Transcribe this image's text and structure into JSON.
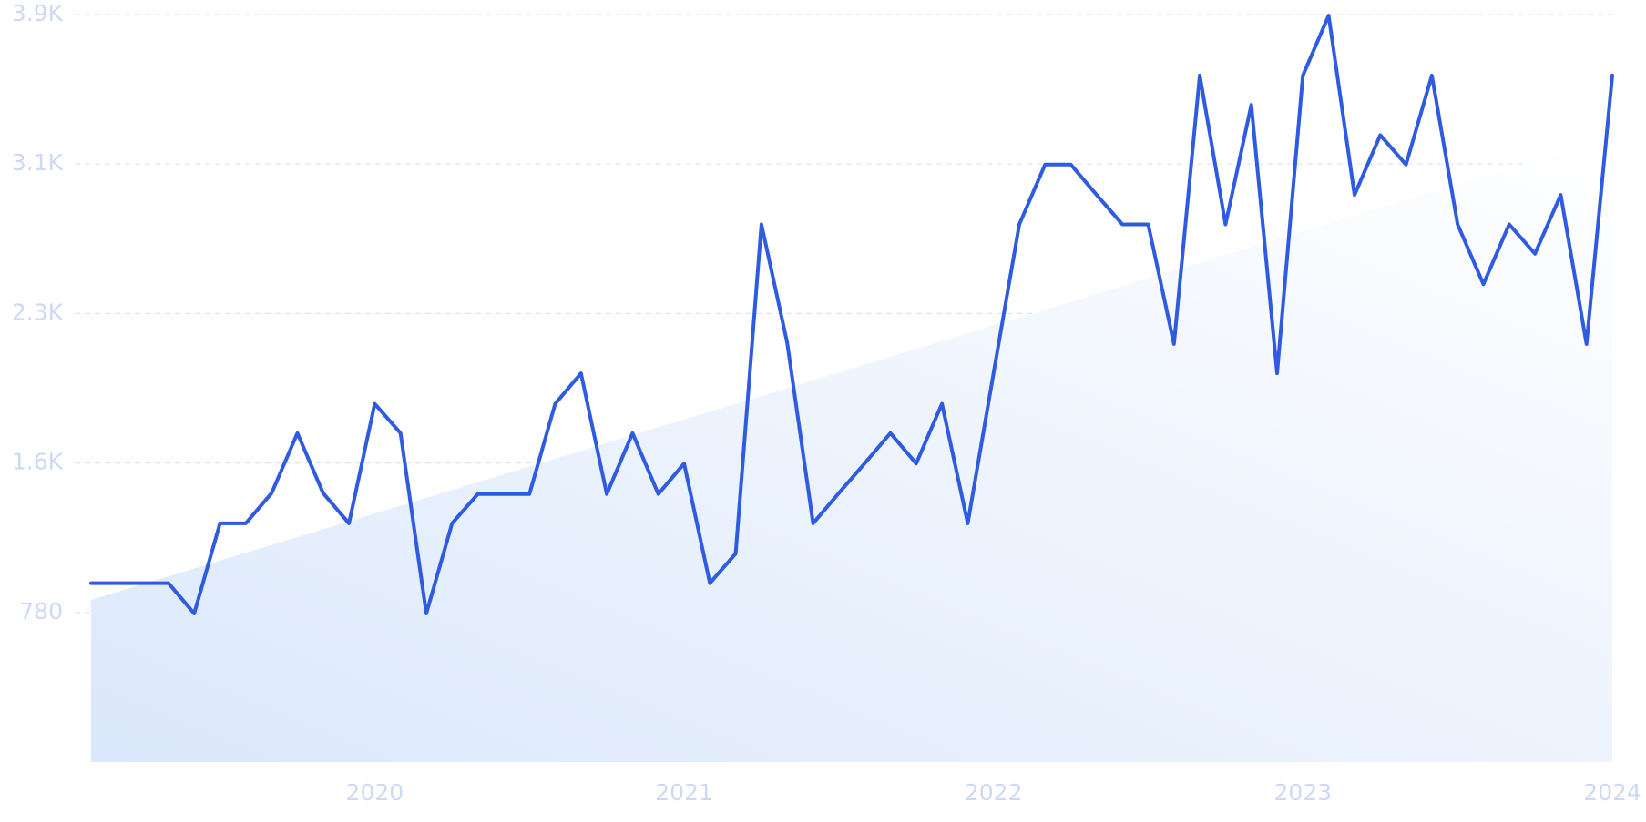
{
  "chart_data": {
    "type": "line",
    "color": "#2f5be0",
    "x": [
      2019.0833,
      2019.1667,
      2019.25,
      2019.3333,
      2019.4167,
      2019.5,
      2019.5833,
      2019.6667,
      2019.75,
      2019.8333,
      2019.9167,
      2020,
      2020.0833,
      2020.1667,
      2020.25,
      2020.3333,
      2020.4167,
      2020.5,
      2020.5833,
      2020.6667,
      2020.75,
      2020.8333,
      2020.9167,
      2021,
      2021.0833,
      2021.1667,
      2021.25,
      2021.3333,
      2021.4167,
      2021.5,
      2021.5833,
      2021.6667,
      2021.75,
      2021.8333,
      2021.9167,
      2022,
      2022.0833,
      2022.1667,
      2022.25,
      2022.3333,
      2022.4167,
      2022.5,
      2022.5833,
      2022.6667,
      2022.75,
      2022.8333,
      2022.9167,
      2023,
      2023.0833,
      2023.1667,
      2023.25,
      2023.3333,
      2023.4167,
      2023.5,
      2023.5833,
      2023.6667,
      2023.75,
      2023.8333,
      2023.9167,
      2024
    ],
    "values": [
      933,
      933,
      933,
      933,
      775,
      1245,
      1245,
      1403,
      1716,
      1403,
      1245,
      1869,
      1716,
      775,
      1245,
      1398,
      1398,
      1398,
      1869,
      2028,
      1398,
      1716,
      1398,
      1557,
      933,
      1087,
      2805,
      2187,
      1245,
      1403,
      1557,
      1716,
      1557,
      1869,
      1245,
      2028,
      2805,
      3117,
      3117,
      2959,
      2805,
      2805,
      2181,
      3582,
      2805,
      3429,
      2028,
      3582,
      3895,
      2959,
      3271,
      3117,
      3582,
      2805,
      2493,
      2805,
      2652,
      2959,
      2181,
      3582
    ],
    "trend": {
      "x": [
        2019.0833,
        2024
      ],
      "values": [
        846,
        3260
      ]
    },
    "xlim": [
      2019.0833,
      2024
    ],
    "xticks": [
      2020,
      2021,
      2022,
      2023,
      2024
    ],
    "ylim": [
      0,
      3900
    ],
    "yticks": [
      780,
      {
        "value": 1560,
        "label": "1.6K"
      },
      {
        "value": 2340,
        "label": "2.3K"
      },
      {
        "value": 3120,
        "label": "3.1K"
      },
      {
        "value": 3900,
        "label": "3.9K"
      }
    ],
    "grid": true
  }
}
